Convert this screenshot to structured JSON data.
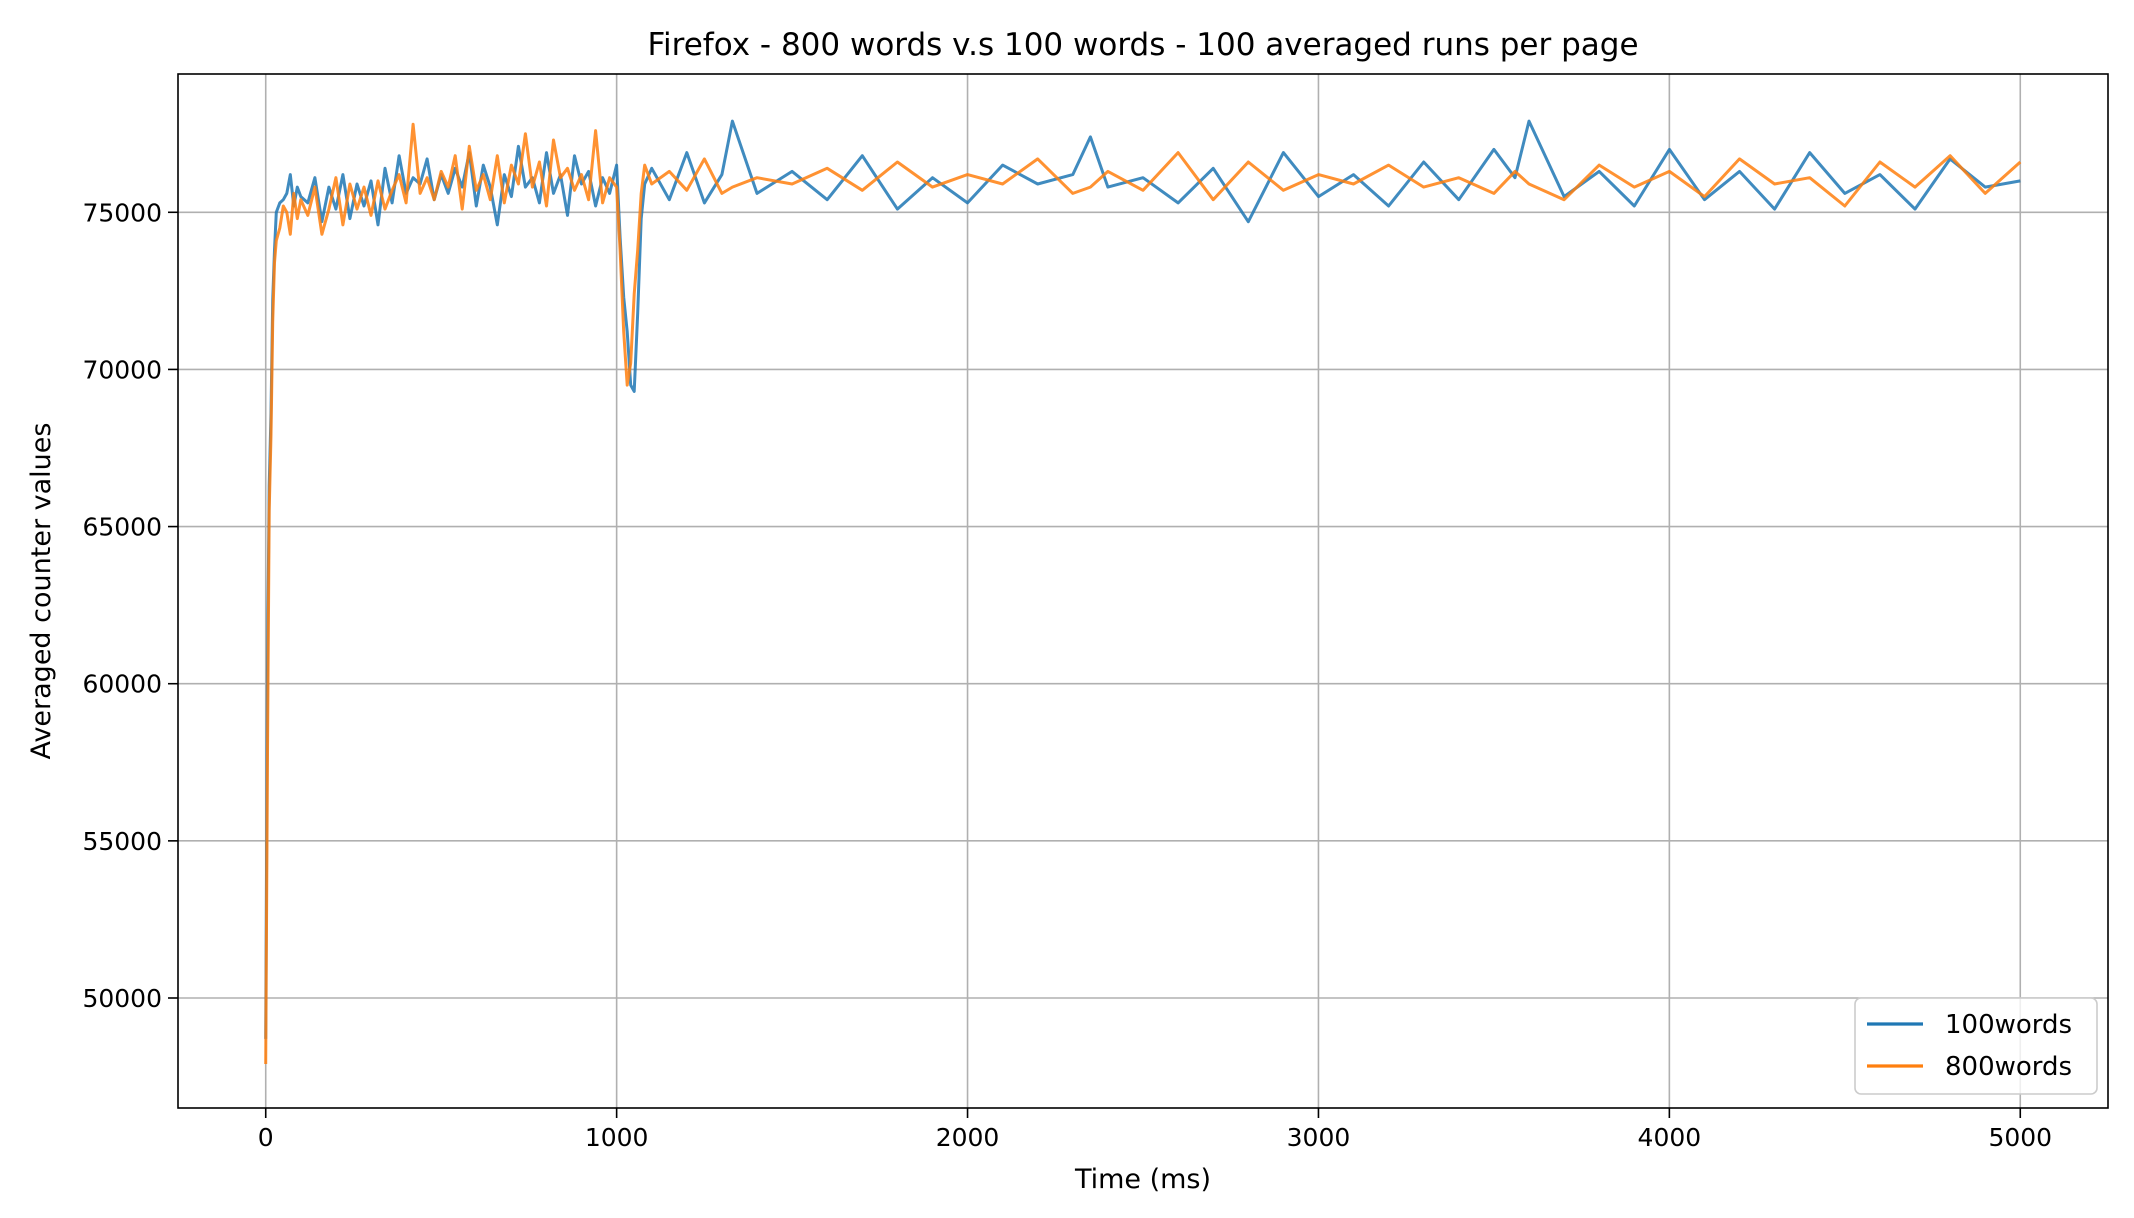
{
  "chart_data": {
    "type": "line",
    "title": "Firefox - 800 words v.s 100 words - 100 averaged runs per page",
    "xlabel": "Time (ms)",
    "ylabel": "Averaged counter values",
    "xlim": [
      -250,
      5250
    ],
    "ylim": [
      46500,
      79400
    ],
    "xticks": [
      0,
      1000,
      2000,
      3000,
      4000,
      5000
    ],
    "xtick_labels": [
      "0",
      "1000",
      "2000",
      "3000",
      "4000",
      "5000"
    ],
    "yticks": [
      50000,
      55000,
      60000,
      65000,
      70000,
      75000
    ],
    "ytick_labels": [
      "50000",
      "55000",
      "60000",
      "65000",
      "70000",
      "75000"
    ],
    "grid": true,
    "legend_position": "lower-right",
    "series": [
      {
        "name": "100words",
        "color": "#1f77b4",
        "x": [
          0,
          5,
          10,
          15,
          20,
          25,
          30,
          40,
          50,
          60,
          70,
          80,
          90,
          100,
          120,
          140,
          160,
          180,
          200,
          220,
          240,
          260,
          280,
          300,
          320,
          340,
          360,
          380,
          400,
          420,
          440,
          460,
          480,
          500,
          520,
          540,
          560,
          580,
          600,
          620,
          640,
          660,
          680,
          700,
          720,
          740,
          760,
          780,
          800,
          820,
          840,
          860,
          880,
          900,
          920,
          940,
          960,
          980,
          1000,
          1010,
          1020,
          1030,
          1040,
          1050,
          1060,
          1070,
          1080,
          1100,
          1150,
          1200,
          1250,
          1300,
          1330,
          1400,
          1500,
          1600,
          1700,
          1800,
          1900,
          2000,
          2100,
          2200,
          2300,
          2350,
          2400,
          2500,
          2600,
          2700,
          2800,
          2900,
          3000,
          3100,
          3200,
          3300,
          3400,
          3500,
          3560,
          3600,
          3700,
          3800,
          3900,
          4000,
          4100,
          4200,
          4300,
          4400,
          4500,
          4600,
          4700,
          4800,
          4900,
          5000
        ],
        "y": [
          48700,
          60500,
          66300,
          68600,
          72200,
          73800,
          75000,
          75300,
          75400,
          75600,
          76200,
          75200,
          75800,
          75500,
          75300,
          76100,
          74700,
          75800,
          75100,
          76200,
          74800,
          75900,
          75200,
          76000,
          74600,
          76400,
          75300,
          76800,
          75600,
          76100,
          75900,
          76700,
          75400,
          76200,
          75600,
          76400,
          75800,
          76900,
          75200,
          76500,
          75800,
          74600,
          76200,
          75500,
          77100,
          75800,
          76100,
          75300,
          76900,
          75600,
          76200,
          74900,
          76800,
          75900,
          76300,
          75200,
          76100,
          75600,
          76500,
          74200,
          72300,
          71200,
          69500,
          69300,
          71800,
          74800,
          75900,
          76400,
          75400,
          76900,
          75300,
          76200,
          77900,
          75600,
          76300,
          75400,
          76800,
          75100,
          76100,
          75300,
          76500,
          75900,
          76200,
          77400,
          75800,
          76100,
          75300,
          76400,
          74700,
          76900,
          75500,
          76200,
          75200,
          76600,
          75400,
          77000,
          76100,
          77900,
          75500,
          76300,
          75200,
          77000,
          75400,
          76300,
          75100,
          76900,
          75600,
          76200,
          75100,
          76700,
          75800,
          76000
        ]
      },
      {
        "name": "800words",
        "color": "#ff7f0e",
        "x": [
          0,
          5,
          10,
          15,
          20,
          25,
          30,
          40,
          50,
          60,
          70,
          80,
          90,
          100,
          120,
          140,
          160,
          180,
          200,
          220,
          240,
          260,
          280,
          300,
          320,
          340,
          360,
          380,
          400,
          420,
          440,
          460,
          480,
          500,
          520,
          540,
          560,
          580,
          600,
          620,
          640,
          660,
          680,
          700,
          720,
          740,
          760,
          780,
          800,
          820,
          840,
          860,
          880,
          900,
          920,
          940,
          960,
          980,
          1000,
          1010,
          1020,
          1030,
          1040,
          1050,
          1060,
          1070,
          1080,
          1100,
          1150,
          1200,
          1250,
          1300,
          1330,
          1400,
          1500,
          1600,
          1700,
          1800,
          1900,
          2000,
          2100,
          2200,
          2300,
          2350,
          2400,
          2500,
          2600,
          2700,
          2800,
          2900,
          3000,
          3100,
          3200,
          3300,
          3400,
          3500,
          3560,
          3600,
          3700,
          3800,
          3900,
          4000,
          4100,
          4200,
          4300,
          4400,
          4500,
          4600,
          4700,
          4800,
          4900,
          5000
        ],
        "y": [
          47900,
          57800,
          65500,
          67900,
          71500,
          73400,
          74100,
          74500,
          75200,
          75000,
          74300,
          75600,
          74800,
          75400,
          74900,
          75800,
          74300,
          75100,
          76100,
          74600,
          75900,
          75100,
          75800,
          74900,
          76000,
          75100,
          75700,
          76200,
          75300,
          77800,
          75600,
          76100,
          75400,
          76300,
          75800,
          76800,
          75100,
          77100,
          75700,
          76200,
          75400,
          76800,
          75300,
          76500,
          75900,
          77500,
          75800,
          76600,
          75200,
          77300,
          76100,
          76400,
          75700,
          76200,
          75400,
          77600,
          75300,
          76100,
          75800,
          73800,
          71200,
          69500,
          70200,
          72400,
          73800,
          75600,
          76500,
          75900,
          76300,
          75700,
          76700,
          75600,
          75800,
          76100,
          75900,
          76400,
          75700,
          76600,
          75800,
          76200,
          75900,
          76700,
          75600,
          75800,
          76300,
          75700,
          76900,
          75400,
          76600,
          75700,
          76200,
          75900,
          76500,
          75800,
          76100,
          75600,
          76300,
          75900,
          75400,
          76500,
          75800,
          76300,
          75500,
          76700,
          75900,
          76100,
          75200,
          76600,
          75800,
          76800,
          75600,
          76600
        ]
      }
    ]
  }
}
